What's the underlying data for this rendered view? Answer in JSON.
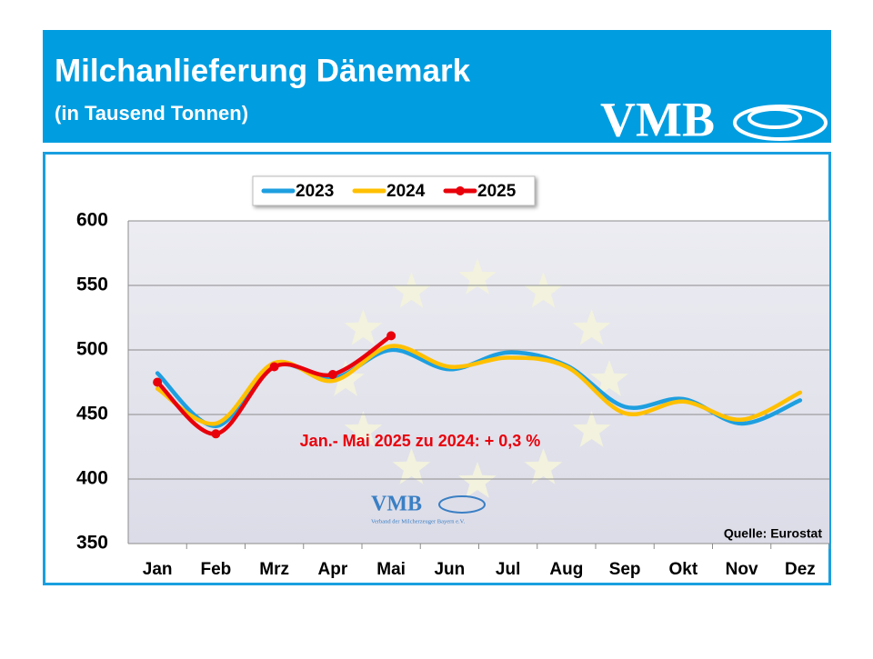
{
  "header": {
    "title": "Milchanlieferung Dänemark",
    "subtitle": "(in Tausend Tonnen)",
    "logo": "VMB"
  },
  "chart_data": {
    "type": "line",
    "categories": [
      "Jan",
      "Feb",
      "Mrz",
      "Apr",
      "Mai",
      "Jun",
      "Jul",
      "Aug",
      "Sep",
      "Okt",
      "Nov",
      "Dez"
    ],
    "series": [
      {
        "name": "2023",
        "color": "#1e9fe0",
        "values": [
          482,
          441,
          488,
          478,
          500,
          485,
          498,
          488,
          456,
          462,
          443,
          461
        ]
      },
      {
        "name": "2024",
        "color": "#ffc000",
        "values": [
          470,
          443,
          490,
          476,
          503,
          487,
          494,
          487,
          451,
          460,
          446,
          467
        ]
      },
      {
        "name": "2025",
        "color": "#e8000b",
        "values": [
          475,
          435,
          487,
          481,
          511,
          null,
          null,
          null,
          null,
          null,
          null,
          null
        ],
        "markers": true
      }
    ],
    "ylim": [
      350,
      600
    ],
    "yticks": [
      350,
      400,
      450,
      500,
      550,
      600
    ],
    "grid": true,
    "annotation": "Jan.- Mai 2025 zu 2024: + 0,3 %",
    "source": "Quelle: Eurostat",
    "watermark": {
      "logo": "VMB",
      "caption": "Verband der Milcherzeuger Bayern e.V."
    }
  }
}
